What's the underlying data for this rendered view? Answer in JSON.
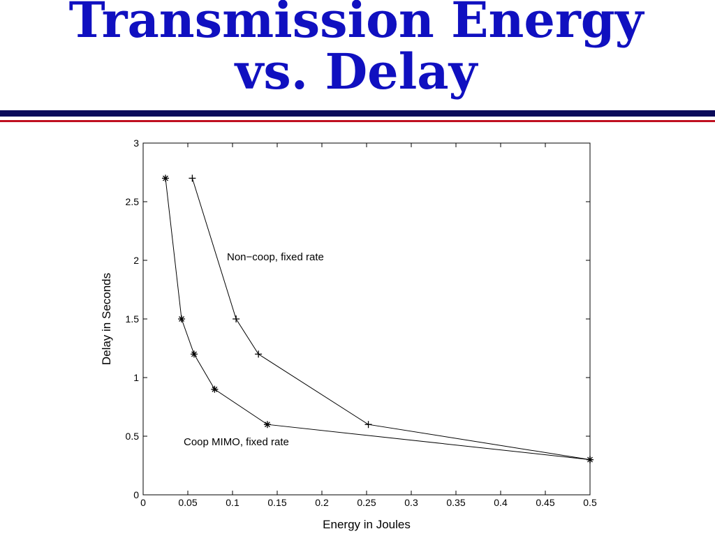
{
  "chart_data": {
    "type": "line",
    "title": "Transmission Energy vs. Delay",
    "xlabel": "Energy in Joules",
    "ylabel": "Delay in Seconds",
    "xlim": [
      0,
      0.5
    ],
    "xticks": [
      0,
      0.05,
      0.1,
      0.15,
      0.2,
      0.25,
      0.3,
      0.35,
      0.4,
      0.45,
      0.5
    ],
    "ylim": [
      0,
      3
    ],
    "yticks": [
      0,
      0.5,
      1,
      1.5,
      2,
      2.5,
      3
    ],
    "series": [
      {
        "name": "Non−coop, fixed rate",
        "color": "#000000",
        "marker": "+",
        "x": [
          0.055,
          0.104,
          0.129,
          0.252,
          0.5
        ],
        "values": [
          2.7,
          1.5,
          1.2,
          0.6,
          0.3
        ]
      },
      {
        "name": "Coop MIMO, fixed rate",
        "color": "#000000",
        "marker": "*",
        "x": [
          0.025,
          0.043,
          0.057,
          0.08,
          0.139,
          0.5
        ],
        "values": [
          2.7,
          1.5,
          1.2,
          0.9,
          0.6,
          0.3
        ]
      }
    ]
  }
}
